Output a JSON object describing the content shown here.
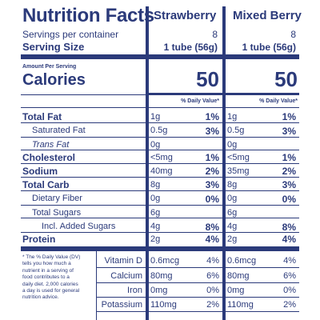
{
  "title": "Nutrition Facts",
  "columns": [
    "Strawberry",
    "Mixed Berry"
  ],
  "servings_per_container": {
    "label": "Servings per container",
    "values": [
      "8",
      "8"
    ]
  },
  "serving_size": {
    "label": "Serving Size",
    "values": [
      "1 tube (56g)",
      "1 tube (56g)"
    ]
  },
  "amount_per_serving": "Amount Per Serving",
  "calories": {
    "label": "Calories",
    "values": [
      "50",
      "50"
    ]
  },
  "dv_header": "% Daily Value*",
  "nutrients": [
    {
      "label": "Total Fat",
      "amounts": [
        "1g",
        "1g"
      ],
      "dv": [
        "1%",
        "1%"
      ]
    },
    {
      "label": "Saturated Fat",
      "amounts": [
        "0.5g",
        "0.5g"
      ],
      "dv": [
        "3%",
        "3%"
      ]
    },
    {
      "label": "Trans Fat",
      "amounts": [
        "0g",
        "0g"
      ],
      "dv": [
        "",
        ""
      ]
    },
    {
      "label": "Cholesterol",
      "amounts": [
        "<5mg",
        "<5mg"
      ],
      "dv": [
        "1%",
        "1%"
      ]
    },
    {
      "label": "Sodium",
      "amounts": [
        "40mg",
        "35mg"
      ],
      "dv": [
        "2%",
        "2%"
      ]
    },
    {
      "label": "Total Carb",
      "amounts": [
        "8g",
        "8g"
      ],
      "dv": [
        "3%",
        "3%"
      ]
    },
    {
      "label": "Dietary Fiber",
      "amounts": [
        "0g",
        "0g"
      ],
      "dv": [
        "0%",
        "0%"
      ]
    },
    {
      "label": "Total Sugars",
      "amounts": [
        "6g",
        "6g"
      ],
      "dv": [
        "",
        ""
      ]
    },
    {
      "label": "Incl. Added Sugars",
      "amounts": [
        "4g",
        "4g"
      ],
      "dv": [
        "8%",
        "8%"
      ]
    },
    {
      "label": "Protein",
      "amounts": [
        "2g",
        "2g"
      ],
      "dv": [
        "4%",
        "4%"
      ]
    }
  ],
  "footnote": "* The % Daily Value (DV) tells you how much a nutrient in a serving of food contributes to a daily diet. 2,000 calories a day is used for general nutrition advice.",
  "footnote_lines": [
    "* The % Daily Value (DV)",
    "tells you how much a",
    "nutrient in a serving of",
    "food contributes to a",
    "daily diet. 2,000 calories",
    "a day is used for general",
    "nutrition advice."
  ],
  "vitamins": [
    {
      "label": "Vitamin D",
      "amounts": [
        "0.6mcg",
        "0.6mcg"
      ],
      "dv": [
        "4%",
        "4%"
      ]
    },
    {
      "label": "Calcium",
      "amounts": [
        "80mg",
        "80mg"
      ],
      "dv": [
        "6%",
        "6%"
      ]
    },
    {
      "label": "Iron",
      "amounts": [
        "0mg",
        "0mg"
      ],
      "dv": [
        "0%",
        "0%"
      ]
    },
    {
      "label": "Potassium",
      "amounts": [
        "110mg",
        "110mg"
      ],
      "dv": [
        "2%",
        "2%"
      ]
    }
  ]
}
